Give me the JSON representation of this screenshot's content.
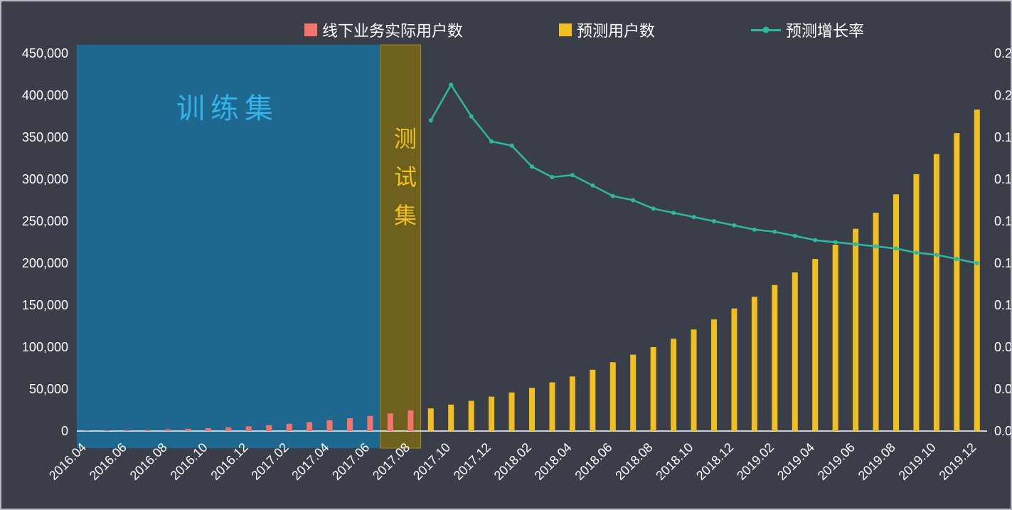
{
  "page": {
    "background": "#3a3e48",
    "frame_border_color": "#b9bcc0",
    "text_color": "#ffffff"
  },
  "legend": {
    "items": [
      {
        "id": "actual",
        "label": "线下业务实际用户数",
        "color": "#f4736c",
        "marker": "square"
      },
      {
        "id": "predicted",
        "label": "预测用户数",
        "color": "#f0c020",
        "marker": "square"
      },
      {
        "id": "growth",
        "label": "预测增长率",
        "color": "#2db8a1",
        "marker": "line-dot"
      }
    ]
  },
  "annotations": {
    "training": {
      "label": "训练集",
      "start": "2016.04",
      "end": "2017.06",
      "fill": "#1e6890",
      "label_color": "#33b3e6"
    },
    "test": {
      "label": "测试集",
      "start": "2017.07",
      "end": "2017.08",
      "fill": "#6e611d",
      "stroke": "#9b8a2e",
      "label_color": "#f0c020"
    }
  },
  "chart_data": {
    "type": "combo",
    "categories": [
      "2016.04",
      "2016.05",
      "2016.06",
      "2016.07",
      "2016.08",
      "2016.09",
      "2016.10",
      "2016.11",
      "2016.12",
      "2017.01",
      "2017.02",
      "2017.03",
      "2017.04",
      "2017.05",
      "2017.06",
      "2017.07",
      "2017.08",
      "2017.09",
      "2017.10",
      "2017.11",
      "2017.12",
      "2018.01",
      "2018.02",
      "2018.03",
      "2018.04",
      "2018.05",
      "2018.06",
      "2018.07",
      "2018.08",
      "2018.09",
      "2018.10",
      "2018.11",
      "2018.12",
      "2019.01",
      "2019.02",
      "2019.03",
      "2019.04",
      "2019.05",
      "2019.06",
      "2019.07",
      "2019.08",
      "2019.09",
      "2019.10",
      "2019.11",
      "2019.12"
    ],
    "x_label_every": 2,
    "series": [
      {
        "id": "actual",
        "name": "线下业务实际用户数",
        "type": "bar",
        "axis": "left",
        "color": "#f4736c",
        "values": [
          600,
          800,
          1100,
          1500,
          2000,
          2600,
          3400,
          4400,
          5600,
          7000,
          8700,
          10600,
          12800,
          15300,
          18000,
          21000,
          24500,
          null,
          null,
          null,
          null,
          null,
          null,
          null,
          null,
          null,
          null,
          null,
          null,
          null,
          null,
          null,
          null,
          null,
          null,
          null,
          null,
          null,
          null,
          null,
          null,
          null,
          null,
          null,
          null
        ]
      },
      {
        "id": "predicted",
        "name": "预测用户数",
        "type": "bar",
        "axis": "left",
        "color": "#f0c020",
        "values": [
          null,
          null,
          null,
          null,
          null,
          null,
          null,
          null,
          null,
          null,
          null,
          null,
          null,
          null,
          null,
          null,
          null,
          27000,
          31500,
          36000,
          41000,
          46000,
          51500,
          58000,
          65000,
          73000,
          82000,
          91000,
          100000,
          110000,
          121000,
          133000,
          146000,
          160000,
          174000,
          189000,
          205000,
          222000,
          241000,
          260000,
          282000,
          306000,
          330000,
          355000,
          383000
        ]
      },
      {
        "id": "growth",
        "name": "预测增长率",
        "type": "line",
        "axis": "right",
        "color": "#2db8a1",
        "values": [
          null,
          null,
          null,
          null,
          null,
          null,
          null,
          null,
          null,
          null,
          null,
          null,
          null,
          null,
          null,
          null,
          null,
          0.148,
          0.165,
          0.15,
          0.138,
          0.136,
          0.126,
          0.121,
          0.122,
          0.117,
          0.112,
          0.11,
          0.106,
          0.104,
          0.102,
          0.1,
          0.098,
          0.096,
          0.095,
          0.093,
          0.091,
          0.09,
          0.089,
          0.088,
          0.087,
          0.085,
          0.084,
          0.082,
          0.08
        ]
      }
    ],
    "left_axis": {
      "min": 0,
      "max": 450000,
      "tick_values": [
        0,
        50000,
        100000,
        150000,
        200000,
        250000,
        300000,
        350000,
        400000,
        450000
      ],
      "tick_labels": [
        "0",
        "50,000",
        "100,000",
        "150,000",
        "200,000",
        "250,000",
        "300,000",
        "350,000",
        "400,000",
        "450,000"
      ]
    },
    "right_axis": {
      "min": 0,
      "max": 0.18,
      "tick_values": [
        0,
        0.02,
        0.04,
        0.06,
        0.08,
        0.1,
        0.12,
        0.14,
        0.16,
        0.18
      ],
      "tick_labels": [
        "0.0",
        "0.0",
        "0.0",
        "0.1",
        "0.1",
        "0.1",
        "0.1",
        "0.1",
        "0.2",
        "0.2"
      ]
    },
    "grid": false,
    "legend_position": "top"
  }
}
